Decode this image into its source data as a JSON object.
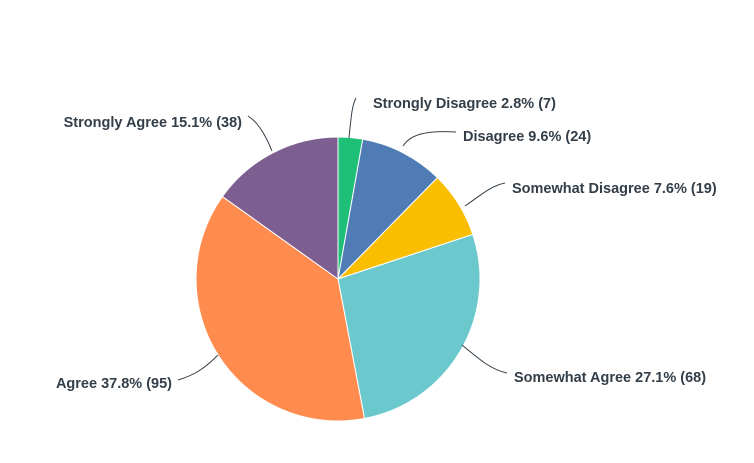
{
  "chart_data": {
    "type": "pie",
    "title": "",
    "start": "top",
    "direction": "clockwise",
    "slices": [
      {
        "label": "Strongly Disagree",
        "percent": "2.8%",
        "value": 7,
        "color": "#1ec077"
      },
      {
        "label": "Disagree",
        "percent": "9.6%",
        "value": 24,
        "color": "#507cb6"
      },
      {
        "label": "Somewhat Disagree",
        "percent": "7.6%",
        "value": 19,
        "color": "#f9be00"
      },
      {
        "label": "Somewhat Agree",
        "percent": "27.1%",
        "value": 68,
        "color": "#6bc8cd"
      },
      {
        "label": "Agree",
        "percent": "37.8%",
        "value": 95,
        "color": "#ff8b4f"
      },
      {
        "label": "Strongly Agree",
        "percent": "15.1%",
        "value": 38,
        "color": "#7d5e90"
      }
    ]
  }
}
